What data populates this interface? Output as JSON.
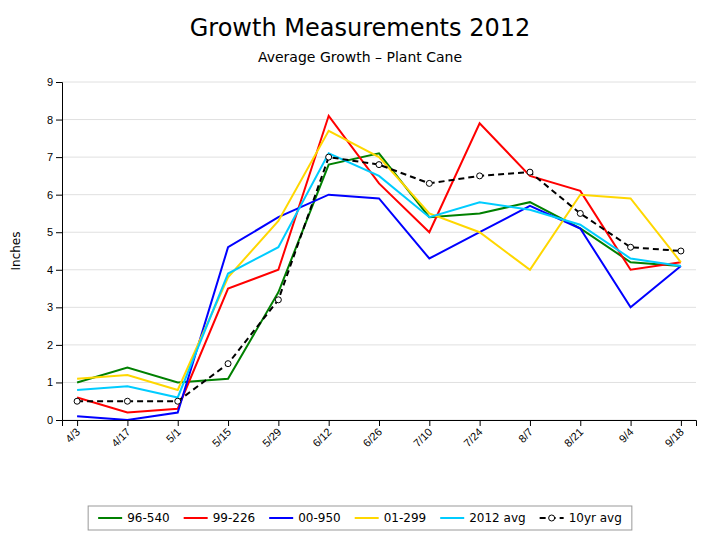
{
  "chart_data": {
    "type": "line",
    "title": "Growth Measurements 2012",
    "subtitle": "Average Growth – Plant Cane",
    "ylabel": "Inches",
    "categories": [
      "4/3",
      "4/17",
      "5/1",
      "5/15",
      "5/29",
      "6/12",
      "6/26",
      "7/10",
      "7/24",
      "8/7",
      "8/21",
      "9/4",
      "9/18"
    ],
    "series": [
      {
        "name": "96-540",
        "color": "#008000",
        "values": [
          1.0,
          1.4,
          1.0,
          1.1,
          3.4,
          6.8,
          7.1,
          5.4,
          5.5,
          5.8,
          5.1,
          4.2,
          4.1
        ]
      },
      {
        "name": "99-226",
        "color": "#ff0000",
        "values": [
          0.6,
          0.2,
          0.3,
          3.5,
          4.0,
          8.1,
          6.3,
          5.0,
          7.9,
          6.5,
          6.1,
          4.0,
          4.2
        ]
      },
      {
        "name": "00-950",
        "color": "#0000ff",
        "values": [
          0.1,
          0.0,
          0.2,
          4.6,
          5.4,
          6.0,
          5.9,
          4.3,
          5.0,
          5.7,
          5.1,
          3.0,
          4.1
        ]
      },
      {
        "name": "01-299",
        "color": "#ffd700",
        "values": [
          1.1,
          1.2,
          0.8,
          3.8,
          5.3,
          7.7,
          7.0,
          5.5,
          5.0,
          4.0,
          6.0,
          5.9,
          4.2
        ]
      },
      {
        "name": "2012 avg",
        "color": "#00ccff",
        "values": [
          0.8,
          0.9,
          0.6,
          3.9,
          4.6,
          7.1,
          6.5,
          5.4,
          5.8,
          5.6,
          5.2,
          4.3,
          4.1
        ]
      },
      {
        "name": "10yr avg",
        "color": "#000000",
        "line_style": "dashed",
        "marker": "circle",
        "values": [
          0.5,
          0.5,
          0.5,
          1.5,
          3.2,
          7.0,
          6.8,
          6.3,
          6.5,
          6.6,
          5.5,
          4.6,
          4.5
        ]
      }
    ],
    "ylim": [
      0,
      9
    ],
    "yticks": [
      0,
      1,
      2,
      3,
      4,
      5,
      6,
      7,
      8,
      9
    ],
    "grid": true,
    "legend": "bottom"
  }
}
